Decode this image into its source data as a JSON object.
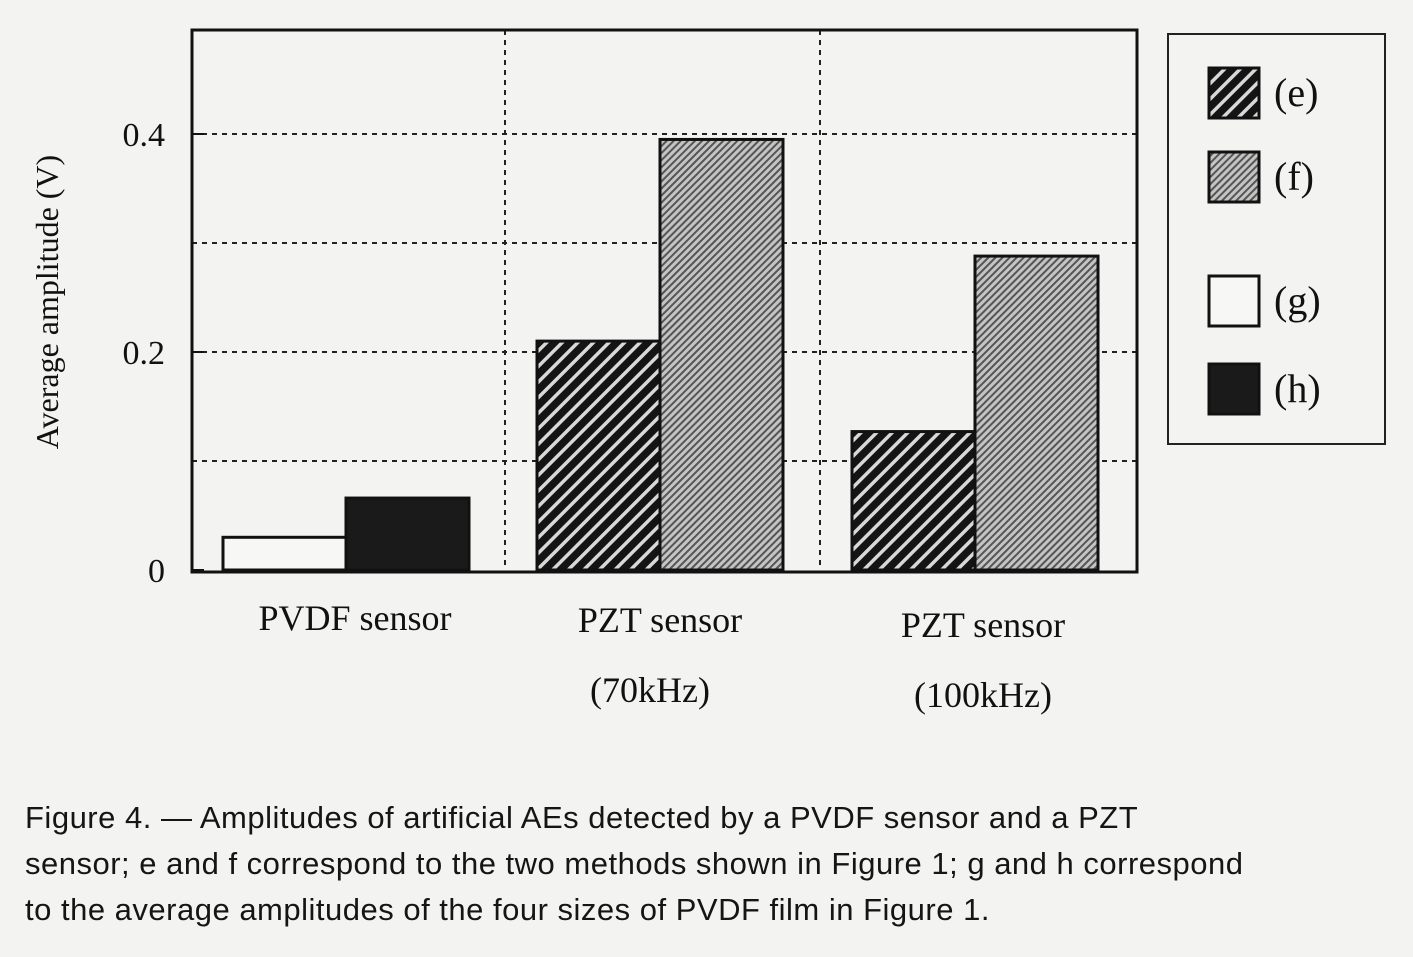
{
  "chart_data": {
    "type": "bar",
    "ylabel": "Average amplitude (V)",
    "ylim": [
      0,
      0.5
    ],
    "yticks": [
      0,
      0.2,
      0.4
    ],
    "ytick_labels": [
      "0",
      "0.2",
      "0.4"
    ],
    "gridlines_y": [
      0.1,
      0.2,
      0.3,
      0.4
    ],
    "grid": true,
    "legend_placement": "right-outside",
    "categories": [
      {
        "line1": "PVDF sensor",
        "line2": ""
      },
      {
        "line1": "PZT sensor",
        "line2": "(70kHz)"
      },
      {
        "line1": "PZT sensor",
        "line2": "(100kHz)"
      }
    ],
    "series": [
      {
        "name": "(e)",
        "pattern": "dark-hatch",
        "values": [
          null,
          0.21,
          0.127
        ]
      },
      {
        "name": "(f)",
        "pattern": "gray-hatch",
        "values": [
          null,
          0.395,
          0.288
        ]
      },
      {
        "name": "(g)",
        "pattern": "white",
        "values": [
          0.03,
          null,
          null
        ]
      },
      {
        "name": "(h)",
        "pattern": "black",
        "values": [
          0.066,
          null,
          null
        ]
      }
    ],
    "colors": {
      "ink": "#111111",
      "background": "#f3f3f1",
      "gray": "#a8a8a8"
    }
  },
  "caption": {
    "lines": [
      "Figure 4. — Amplitudes of artificial AEs detected by a PVDF sensor and a PZT",
      "sensor; e and f correspond to the two methods shown in Figure 1; g and h correspond",
      "to the average amplitudes of the four sizes of PVDF film in Figure 1."
    ]
  }
}
